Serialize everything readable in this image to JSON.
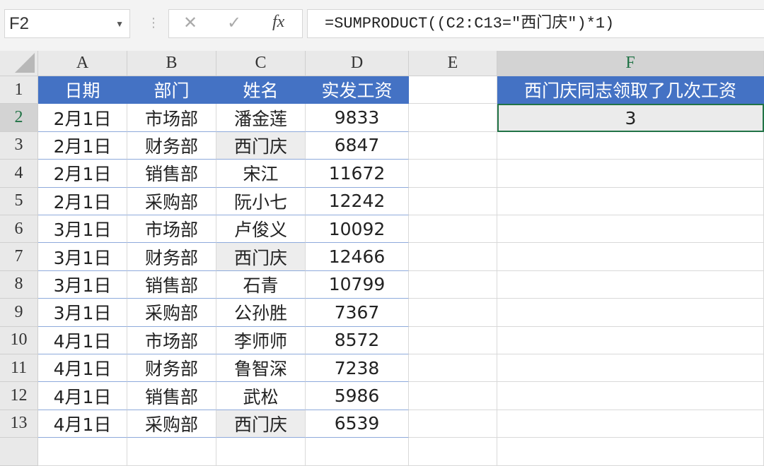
{
  "formula_bar": {
    "name_box": "F2",
    "cancel_icon": "✕",
    "enter_icon": "✓",
    "fx_label": "fx",
    "formula": "=SUMPRODUCT((C2:C13=\"西门庆\")*1)"
  },
  "columns": [
    "A",
    "B",
    "C",
    "D",
    "E",
    "F"
  ],
  "rows": [
    "1",
    "2",
    "3",
    "4",
    "5",
    "6",
    "7",
    "8",
    "9",
    "10",
    "11",
    "12",
    "13"
  ],
  "table": {
    "headers": [
      "日期",
      "部门",
      "姓名",
      "实发工资"
    ],
    "rows": [
      [
        "2月1日",
        "市场部",
        "潘金莲",
        "9833"
      ],
      [
        "2月1日",
        "财务部",
        "西门庆",
        "6847"
      ],
      [
        "2月1日",
        "销售部",
        "宋江",
        "11672"
      ],
      [
        "2月1日",
        "采购部",
        "阮小七",
        "12242"
      ],
      [
        "3月1日",
        "市场部",
        "卢俊义",
        "10092"
      ],
      [
        "3月1日",
        "财务部",
        "西门庆",
        "12466"
      ],
      [
        "3月1日",
        "销售部",
        "石青",
        "10799"
      ],
      [
        "3月1日",
        "采购部",
        "公孙胜",
        "7367"
      ],
      [
        "4月1日",
        "市场部",
        "李师师",
        "8572"
      ],
      [
        "4月1日",
        "财务部",
        "鲁智深",
        "7238"
      ],
      [
        "4月1日",
        "销售部",
        "武松",
        "5986"
      ],
      [
        "4月1日",
        "采购部",
        "西门庆",
        "6539"
      ]
    ]
  },
  "result": {
    "header": "西门庆同志领取了几次工资",
    "value": "3"
  },
  "selected_cell": "F2",
  "colors": {
    "header_fill": "#4472c4",
    "selection": "#217346",
    "highlight": "#ededed"
  }
}
